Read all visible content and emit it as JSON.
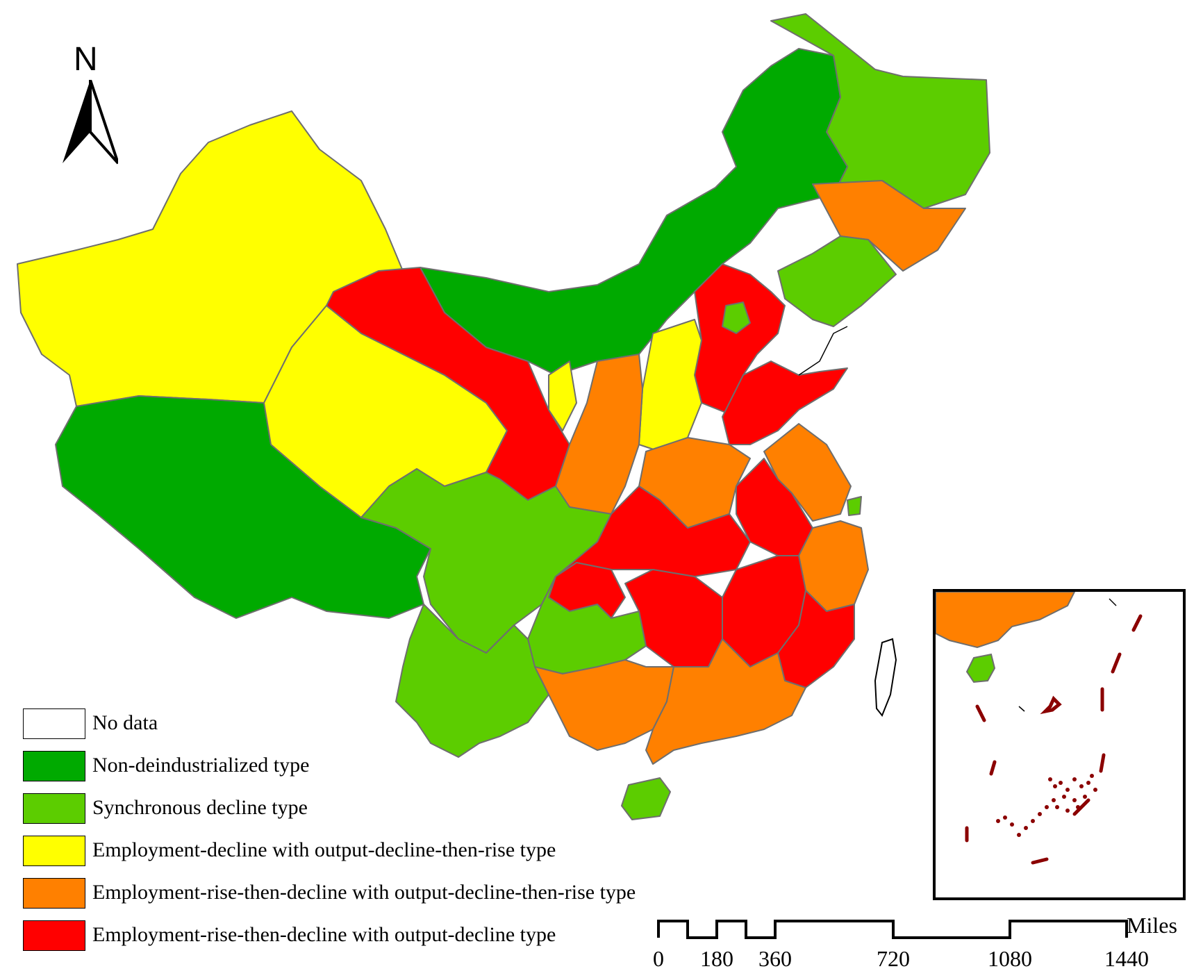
{
  "map": {
    "north_arrow_label": "N",
    "colors": {
      "no_data": "#ffffff",
      "non_deindustrialized": "#00aa00",
      "synchronous_decline": "#5ccd00",
      "emp_decline_output_dr": "#ffff00",
      "emp_rd_output_dr": "#ff8000",
      "emp_rd_output_decline": "#ff0000",
      "islands": "#8b0000",
      "border": "#6e6e6e"
    }
  },
  "legend": {
    "items": [
      {
        "label": "No data",
        "color": "#ffffff"
      },
      {
        "label": "Non-deindustrialized type",
        "color": "#00aa00"
      },
      {
        "label": "Synchronous decline type",
        "color": "#5ccd00"
      },
      {
        "label": "Employment-decline with output-decline-then-rise type",
        "color": "#ffff00"
      },
      {
        "label": "Employment-rise-then-decline with output-decline-then-rise type",
        "color": "#ff8000"
      },
      {
        "label": "Employment-rise-then-decline with output-decline type",
        "color": "#ff0000"
      }
    ]
  },
  "scale_bar": {
    "unit": "Miles",
    "ticks": [
      "0",
      "180",
      "360",
      "720",
      "1080",
      "1440"
    ]
  }
}
